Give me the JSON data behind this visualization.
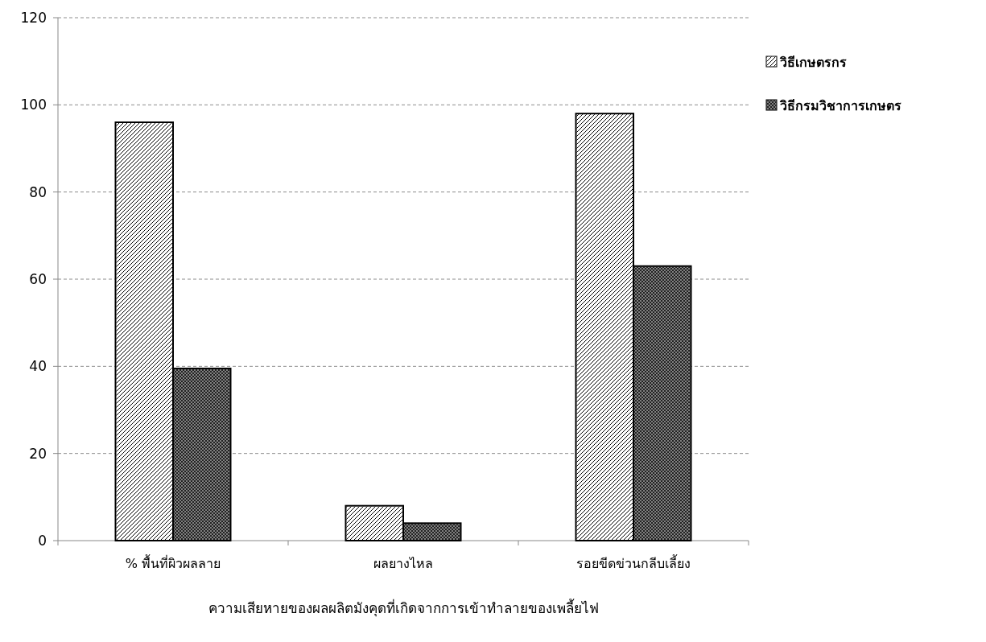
{
  "chart_data": {
    "type": "bar",
    "xlabel": "ความเสียหายของผลผลิตมังคุดที่เกิดจากการเข้าทำลายของเพลี้ยไฟ",
    "categories": [
      "% พื้นที่ผิวผลลาย",
      "ผลยางไหล",
      "รอยขีดข่วนกลีบเลี้ยง"
    ],
    "series": [
      {
        "name": "วิธีเกษตรกร",
        "color": "#ffffff",
        "values": [
          96,
          8,
          98
        ]
      },
      {
        "name": "วิธีกรมวิชาการเกษตร",
        "color": "#808080",
        "values": [
          39.5,
          4,
          63
        ]
      }
    ],
    "ylim": [
      0,
      120
    ],
    "yticks": [
      0,
      20,
      40,
      60,
      80,
      100,
      120
    ],
    "grid": "y",
    "legend": "right"
  }
}
